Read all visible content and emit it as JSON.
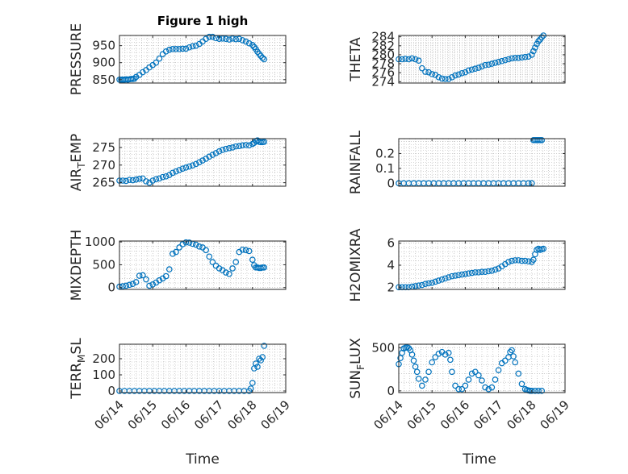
{
  "figure": {
    "title": "Figure 1 high",
    "x_axis_label": "Time",
    "x_tick_labels": [
      "06/14",
      "06/15",
      "06/16",
      "06/17",
      "06/18",
      "06/19"
    ]
  },
  "colors": {
    "marker": "#0072BD",
    "axis": "#262626",
    "grid": "#b0b0b0",
    "background": "#ffffff"
  },
  "chart_data": [
    {
      "type": "scatter",
      "ylabel": "PRESSURE",
      "ylabel_sub": "",
      "y_ticks": [
        "850",
        "900",
        "950"
      ],
      "ylim": [
        840,
        980
      ],
      "x_range": [
        "06/14",
        "06/19"
      ],
      "x": [
        0.0,
        0.05,
        0.1,
        0.15,
        0.2,
        0.25,
        0.3,
        0.35,
        0.4,
        0.45,
        0.5,
        0.6,
        0.7,
        0.8,
        0.9,
        1.0,
        1.1,
        1.2,
        1.3,
        1.4,
        1.5,
        1.6,
        1.7,
        1.8,
        1.9,
        2.0,
        2.1,
        2.2,
        2.3,
        2.4,
        2.5,
        2.6,
        2.7,
        2.8,
        2.9,
        3.0,
        3.1,
        3.2,
        3.3,
        3.4,
        3.5,
        3.6,
        3.7,
        3.8,
        3.9,
        4.0,
        4.05,
        4.1,
        4.15,
        4.2,
        4.25,
        4.3,
        4.35
      ],
      "y": [
        850,
        850,
        850,
        850,
        851,
        850,
        851,
        852,
        852,
        853,
        858,
        864,
        872,
        878,
        886,
        893,
        900,
        912,
        925,
        933,
        938,
        940,
        940,
        940,
        941,
        941,
        945,
        948,
        950,
        955,
        962,
        970,
        976,
        976,
        972,
        970,
        971,
        970,
        968,
        971,
        969,
        970,
        966,
        962,
        957,
        952,
        946,
        940,
        932,
        926,
        920,
        914,
        910
      ]
    },
    {
      "type": "scatter",
      "ylabel": "THETA",
      "ylabel_sub": "",
      "y_ticks": [
        "274",
        "276",
        "278",
        "280",
        "282",
        "284"
      ],
      "ylim": [
        273.7,
        284.3
      ],
      "x_range": [
        "06/14",
        "06/19"
      ],
      "x": [
        0.0,
        0.1,
        0.2,
        0.3,
        0.4,
        0.5,
        0.6,
        0.7,
        0.8,
        0.9,
        1.0,
        1.1,
        1.2,
        1.3,
        1.4,
        1.5,
        1.6,
        1.7,
        1.8,
        1.9,
        2.0,
        2.1,
        2.2,
        2.3,
        2.4,
        2.5,
        2.6,
        2.7,
        2.8,
        2.9,
        3.0,
        3.1,
        3.2,
        3.3,
        3.4,
        3.5,
        3.6,
        3.7,
        3.8,
        3.9,
        4.0,
        4.05,
        4.1,
        4.15,
        4.2,
        4.25,
        4.3,
        4.35
      ],
      "y": [
        279.0,
        279.0,
        279.1,
        279.0,
        279.2,
        279.0,
        278.7,
        277.0,
        276.2,
        276.1,
        275.7,
        275.5,
        275.0,
        274.7,
        274.6,
        274.6,
        275.0,
        275.4,
        275.6,
        275.9,
        276.1,
        276.5,
        276.7,
        276.9,
        277.1,
        277.4,
        277.7,
        277.8,
        278.0,
        278.2,
        278.4,
        278.6,
        278.8,
        279.0,
        279.2,
        279.3,
        279.3,
        279.4,
        279.5,
        279.6,
        280.0,
        280.8,
        281.6,
        282.4,
        283.0,
        283.4,
        283.9,
        284.3
      ]
    },
    {
      "type": "scatter",
      "ylabel": "AIR",
      "ylabel_sub": "T",
      "ylabel_rest": "EMP",
      "y_ticks": [
        "265",
        "270",
        "275"
      ],
      "ylim": [
        264,
        277.5
      ],
      "x_range": [
        "06/14",
        "06/19"
      ],
      "x": [
        0.0,
        0.1,
        0.2,
        0.3,
        0.4,
        0.5,
        0.6,
        0.7,
        0.8,
        0.9,
        1.0,
        1.1,
        1.2,
        1.3,
        1.4,
        1.5,
        1.6,
        1.7,
        1.8,
        1.9,
        2.0,
        2.1,
        2.2,
        2.3,
        2.4,
        2.5,
        2.6,
        2.7,
        2.8,
        2.9,
        3.0,
        3.1,
        3.2,
        3.3,
        3.4,
        3.5,
        3.6,
        3.7,
        3.8,
        3.9,
        4.0,
        4.05,
        4.1,
        4.15,
        4.2,
        4.25,
        4.3,
        4.35
      ],
      "y": [
        265.6,
        265.6,
        265.5,
        265.8,
        265.7,
        265.9,
        266.1,
        266.2,
        265.4,
        265.0,
        265.6,
        266.0,
        266.2,
        266.6,
        266.8,
        267.2,
        267.8,
        268.2,
        268.6,
        269.0,
        269.3,
        269.6,
        269.9,
        270.3,
        270.8,
        271.3,
        271.8,
        272.4,
        272.9,
        273.4,
        273.9,
        274.3,
        274.6,
        274.8,
        275.0,
        275.3,
        275.4,
        275.6,
        275.7,
        275.6,
        276.0,
        276.3,
        276.8,
        277.0,
        276.6,
        276.5,
        276.5,
        276.6
      ]
    },
    {
      "type": "scatter",
      "ylabel": "RAINFALL",
      "ylabel_sub": "",
      "y_ticks": [
        "0",
        "0.1",
        "0.2"
      ],
      "ylim": [
        -0.02,
        0.3
      ],
      "x_range": [
        "06/14",
        "06/19"
      ],
      "x": [
        0.0,
        0.15,
        0.3,
        0.45,
        0.6,
        0.75,
        0.9,
        1.05,
        1.2,
        1.35,
        1.5,
        1.65,
        1.8,
        1.95,
        2.1,
        2.25,
        2.4,
        2.55,
        2.7,
        2.85,
        3.0,
        3.15,
        3.3,
        3.45,
        3.6,
        3.75,
        3.9,
        4.0,
        4.05,
        4.1,
        4.15,
        4.2,
        4.25,
        4.3
      ],
      "y": [
        0,
        0,
        0,
        0,
        0,
        0,
        0,
        0,
        0,
        0,
        0,
        0,
        0,
        0,
        0,
        0,
        0,
        0,
        0,
        0,
        0,
        0,
        0,
        0,
        0,
        0,
        0,
        0,
        0.29,
        0.29,
        0.29,
        0.29,
        0.29,
        0.29
      ]
    },
    {
      "type": "scatter",
      "ylabel": "MIXDEPTH",
      "ylabel_sub": "",
      "y_ticks": [
        "0",
        "500",
        "1000"
      ],
      "ylim": [
        -40,
        1020
      ],
      "x_range": [
        "06/14",
        "06/19"
      ],
      "x": [
        0.0,
        0.1,
        0.2,
        0.3,
        0.4,
        0.5,
        0.6,
        0.7,
        0.8,
        0.9,
        1.0,
        1.1,
        1.2,
        1.3,
        1.4,
        1.5,
        1.6,
        1.7,
        1.8,
        1.9,
        2.0,
        2.1,
        2.2,
        2.3,
        2.4,
        2.5,
        2.6,
        2.7,
        2.8,
        2.9,
        3.0,
        3.1,
        3.2,
        3.3,
        3.4,
        3.5,
        3.6,
        3.7,
        3.8,
        3.9,
        4.0,
        4.05,
        4.1,
        4.15,
        4.2,
        4.25,
        4.3,
        4.35
      ],
      "y": [
        20,
        30,
        40,
        60,
        80,
        120,
        260,
        270,
        180,
        40,
        70,
        110,
        160,
        200,
        250,
        400,
        740,
        780,
        880,
        950,
        990,
        985,
        960,
        940,
        900,
        880,
        820,
        680,
        560,
        480,
        420,
        380,
        330,
        300,
        420,
        560,
        780,
        830,
        820,
        800,
        610,
        490,
        440,
        440,
        430,
        430,
        440,
        440
      ]
    },
    {
      "type": "scatter",
      "ylabel": "H2OMIXRA",
      "ylabel_sub": "",
      "y_ticks": [
        "2",
        "4",
        "6"
      ],
      "ylim": [
        1.8,
        6.2
      ],
      "x_range": [
        "06/14",
        "06/19"
      ],
      "x": [
        0.0,
        0.1,
        0.2,
        0.3,
        0.4,
        0.5,
        0.6,
        0.7,
        0.8,
        0.9,
        1.0,
        1.1,
        1.2,
        1.3,
        1.4,
        1.5,
        1.6,
        1.7,
        1.8,
        1.9,
        2.0,
        2.1,
        2.2,
        2.3,
        2.4,
        2.5,
        2.6,
        2.7,
        2.8,
        2.9,
        3.0,
        3.1,
        3.2,
        3.3,
        3.4,
        3.5,
        3.6,
        3.7,
        3.8,
        3.9,
        4.0,
        4.05,
        4.1,
        4.15,
        4.2,
        4.25,
        4.3,
        4.35
      ],
      "y": [
        2.0,
        2.0,
        2.0,
        2.0,
        2.05,
        2.1,
        2.15,
        2.2,
        2.3,
        2.35,
        2.4,
        2.5,
        2.6,
        2.7,
        2.8,
        2.9,
        3.0,
        3.05,
        3.1,
        3.15,
        3.2,
        3.25,
        3.3,
        3.35,
        3.35,
        3.4,
        3.4,
        3.45,
        3.5,
        3.6,
        3.7,
        3.9,
        4.1,
        4.3,
        4.4,
        4.45,
        4.45,
        4.4,
        4.4,
        4.35,
        4.3,
        4.5,
        5.0,
        5.4,
        5.5,
        5.4,
        5.45,
        5.5
      ]
    },
    {
      "type": "scatter",
      "ylabel": "TERR",
      "ylabel_sub": "M",
      "ylabel_rest": "SL",
      "y_ticks": [
        "0",
        "100",
        "200"
      ],
      "ylim": [
        -10,
        290
      ],
      "x_range": [
        "06/14",
        "06/19"
      ],
      "x": [
        0.0,
        0.15,
        0.3,
        0.45,
        0.6,
        0.75,
        0.9,
        1.05,
        1.2,
        1.35,
        1.5,
        1.65,
        1.8,
        1.95,
        2.1,
        2.25,
        2.4,
        2.55,
        2.7,
        2.85,
        3.0,
        3.15,
        3.3,
        3.45,
        3.6,
        3.75,
        3.9,
        3.95,
        4.0,
        4.05,
        4.1,
        4.15,
        4.2,
        4.25,
        4.3,
        4.35
      ],
      "y": [
        0,
        0,
        0,
        0,
        0,
        0,
        0,
        0,
        0,
        0,
        0,
        0,
        0,
        0,
        0,
        0,
        0,
        0,
        0,
        0,
        0,
        0,
        0,
        0,
        0,
        0,
        0,
        15,
        50,
        140,
        170,
        150,
        200,
        190,
        210,
        280
      ]
    },
    {
      "type": "scatter",
      "ylabel": "SUN",
      "ylabel_sub": "F",
      "ylabel_rest": "LUX",
      "y_ticks": [
        "0",
        "500"
      ],
      "ylim": [
        -20,
        540
      ],
      "x_range": [
        "06/14",
        "06/19"
      ],
      "x": [
        0.0,
        0.05,
        0.1,
        0.15,
        0.2,
        0.25,
        0.3,
        0.35,
        0.4,
        0.45,
        0.5,
        0.55,
        0.6,
        0.7,
        0.8,
        0.9,
        1.0,
        1.1,
        1.2,
        1.3,
        1.4,
        1.5,
        1.55,
        1.6,
        1.7,
        1.8,
        1.9,
        2.0,
        2.1,
        2.2,
        2.3,
        2.4,
        2.5,
        2.6,
        2.7,
        2.8,
        2.9,
        3.0,
        3.1,
        3.2,
        3.3,
        3.35,
        3.4,
        3.45,
        3.5,
        3.6,
        3.7,
        3.8,
        3.85,
        3.9,
        3.95,
        4.0,
        4.1,
        4.2,
        4.3
      ],
      "y": [
        310,
        380,
        440,
        490,
        500,
        505,
        495,
        470,
        420,
        350,
        280,
        220,
        140,
        60,
        130,
        220,
        330,
        390,
        430,
        450,
        420,
        440,
        360,
        220,
        60,
        20,
        20,
        60,
        130,
        200,
        220,
        180,
        120,
        40,
        20,
        40,
        130,
        240,
        320,
        350,
        390,
        450,
        470,
        400,
        330,
        200,
        80,
        20,
        10,
        5,
        0,
        0,
        0,
        0,
        0
      ]
    }
  ]
}
